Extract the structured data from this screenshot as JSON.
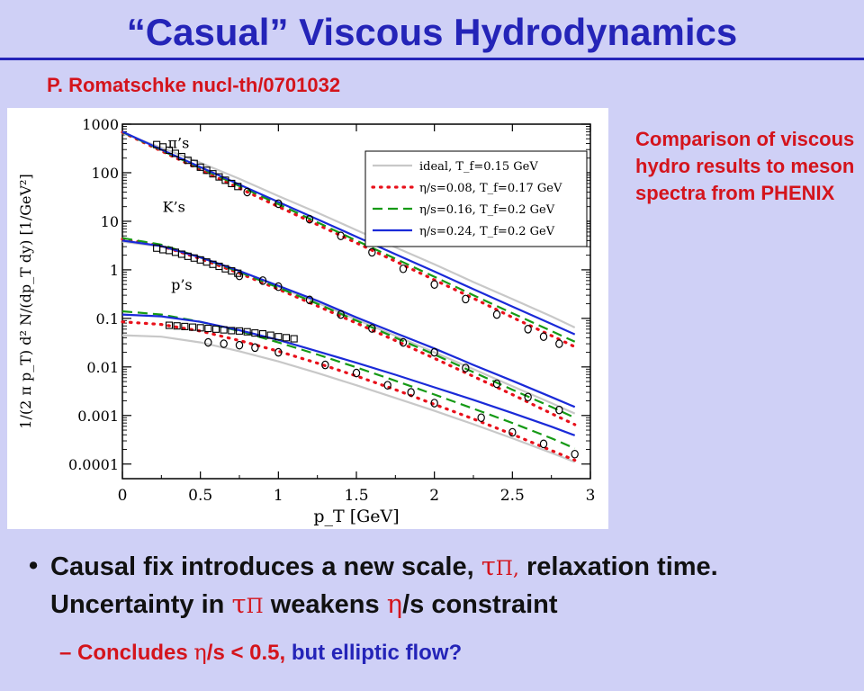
{
  "slide": {
    "title": "“Casual” Viscous Hydrodynamics",
    "reference": "P. Romatschke nucl-th/0701032",
    "side_note": "Comparison of viscous hydro results to meson spectra from PHENIX",
    "bullet": {
      "symbol": "•",
      "part1": "Causal fix introduces a new scale, ",
      "tau1": "τ",
      "pi1": "Π,",
      "part2": " relaxation time. Uncertainty in ",
      "tau2": "τ",
      "pi2": "Π",
      "part3": " weakens ",
      "eta": "η",
      "part4": "/s constraint"
    },
    "sub_bullet": {
      "dash": "–",
      "part1": " Concludes ",
      "eta": "η",
      "part2": "/s < 0.5,",
      "part3": " but elliptic flow?"
    }
  },
  "chart_data": {
    "type": "line",
    "xlabel": "p_T [GeV]",
    "ylabel": "1/(2 π p_T) d² N/(dp_T dy) [1/GeV²]",
    "xlim": [
      0,
      3
    ],
    "ylim": [
      5e-05,
      1000
    ],
    "yscale": "log",
    "x_ticks": [
      "0",
      "0.5",
      "1",
      "1.5",
      "2",
      "2.5",
      "3"
    ],
    "y_ticks": [
      "0.0001",
      "0.001",
      "0.01",
      "0.1",
      "1",
      "10",
      "100",
      "1000"
    ],
    "legend_position": "top-right",
    "legend": [
      {
        "label": "ideal, T_f=0.15 GeV",
        "color": "#c8c8c8",
        "style": "solid"
      },
      {
        "label": "η/s=0.08, T_f=0.17 GeV",
        "color": "#e8101a",
        "style": "dotted"
      },
      {
        "label": "η/s=0.16, T_f=0.2 GeV",
        "color": "#159a15",
        "style": "dashed"
      },
      {
        "label": "η/s=0.24, T_f=0.2 GeV",
        "color": "#1a2ad8",
        "style": "solid"
      }
    ],
    "species_labels": [
      {
        "text": "π’s",
        "x": 0.36,
        "y": 420
      },
      {
        "text": "K’s",
        "x": 0.33,
        "y": 20
      },
      {
        "text": "p’s",
        "x": 0.38,
        "y": 0.5
      }
    ],
    "curves": {
      "pions": {
        "x": [
          0,
          0.25,
          0.5,
          0.75,
          1.0,
          1.25,
          1.5,
          1.75,
          2.0,
          2.25,
          2.5,
          2.75,
          2.9
        ],
        "ideal": [
          650,
          330,
          160,
          75,
          33,
          15,
          6.6,
          2.9,
          1.3,
          0.56,
          0.25,
          0.11,
          0.065
        ],
        "eta008": [
          680,
          280,
          115,
          48,
          20,
          8.5,
          3.6,
          1.5,
          0.62,
          0.26,
          0.105,
          0.044,
          0.026
        ],
        "eta016": [
          690,
          290,
          125,
          53,
          22.5,
          9.5,
          4.0,
          1.7,
          0.72,
          0.3,
          0.128,
          0.055,
          0.033
        ],
        "eta024": [
          700,
          300,
          130,
          57,
          25,
          11,
          4.8,
          2.1,
          0.92,
          0.4,
          0.175,
          0.077,
          0.047
        ]
      },
      "kaons": {
        "x": [
          0,
          0.25,
          0.5,
          0.75,
          1.0,
          1.25,
          1.5,
          1.75,
          2.0,
          2.25,
          2.5,
          2.75,
          2.9
        ],
        "ideal": [
          3.8,
          3.0,
          1.8,
          0.95,
          0.45,
          0.21,
          0.095,
          0.044,
          0.02,
          0.009,
          0.004,
          0.0018,
          0.0011
        ],
        "eta008": [
          4.3,
          3.1,
          1.7,
          0.85,
          0.4,
          0.18,
          0.08,
          0.035,
          0.015,
          0.0064,
          0.0027,
          0.0011,
          0.00065
        ],
        "eta016": [
          4.5,
          3.3,
          1.8,
          0.9,
          0.43,
          0.2,
          0.09,
          0.04,
          0.018,
          0.0078,
          0.0034,
          0.0015,
          0.0009
        ],
        "eta024": [
          4.0,
          3.1,
          1.8,
          0.95,
          0.47,
          0.23,
          0.105,
          0.05,
          0.024,
          0.011,
          0.0052,
          0.0024,
          0.0015
        ]
      },
      "protons": {
        "x": [
          0,
          0.25,
          0.5,
          0.75,
          1.0,
          1.25,
          1.5,
          1.75,
          2.0,
          2.25,
          2.5,
          2.75,
          2.9
        ],
        "ideal": [
          0.045,
          0.042,
          0.032,
          0.021,
          0.013,
          0.0075,
          0.0042,
          0.0023,
          0.00125,
          0.00066,
          0.00034,
          0.00017,
          0.00011
        ],
        "eta008": [
          0.085,
          0.075,
          0.055,
          0.035,
          0.021,
          0.012,
          0.0065,
          0.0034,
          0.0017,
          0.00085,
          0.00041,
          0.00019,
          0.00012
        ],
        "eta016": [
          0.14,
          0.12,
          0.085,
          0.055,
          0.032,
          0.018,
          0.0098,
          0.0052,
          0.0027,
          0.00138,
          0.0007,
          0.00034,
          0.00021
        ],
        "eta024": [
          0.12,
          0.11,
          0.085,
          0.057,
          0.036,
          0.021,
          0.0122,
          0.0069,
          0.0038,
          0.0021,
          0.00112,
          0.00059,
          0.00039
        ]
      }
    },
    "data_points": {
      "pions_squares": [
        [
          0.22,
          380
        ],
        [
          0.26,
          340
        ],
        [
          0.3,
          290
        ],
        [
          0.34,
          250
        ],
        [
          0.38,
          215
        ],
        [
          0.42,
          180
        ],
        [
          0.46,
          155
        ],
        [
          0.5,
          130
        ],
        [
          0.54,
          112
        ],
        [
          0.58,
          95
        ],
        [
          0.62,
          82
        ],
        [
          0.66,
          70
        ],
        [
          0.7,
          60
        ],
        [
          0.74,
          52
        ]
      ],
      "pions_circles": [
        [
          0.8,
          40
        ],
        [
          1.0,
          23
        ],
        [
          1.2,
          11
        ],
        [
          1.4,
          5.0
        ],
        [
          1.6,
          2.3
        ],
        [
          1.8,
          1.05
        ],
        [
          2.0,
          0.5
        ],
        [
          2.2,
          0.25
        ],
        [
          2.4,
          0.12
        ],
        [
          2.6,
          0.06
        ],
        [
          2.7,
          0.042
        ],
        [
          2.8,
          0.03
        ]
      ],
      "kaons_squares": [
        [
          0.22,
          2.8
        ],
        [
          0.26,
          2.6
        ],
        [
          0.3,
          2.5
        ],
        [
          0.34,
          2.3
        ],
        [
          0.38,
          2.1
        ],
        [
          0.42,
          1.9
        ],
        [
          0.46,
          1.75
        ],
        [
          0.5,
          1.6
        ],
        [
          0.54,
          1.45
        ],
        [
          0.58,
          1.3
        ],
        [
          0.62,
          1.18
        ],
        [
          0.66,
          1.05
        ],
        [
          0.7,
          0.95
        ],
        [
          0.74,
          0.85
        ]
      ],
      "kaons_circles": [
        [
          0.75,
          0.75
        ],
        [
          0.9,
          0.6
        ],
        [
          1.0,
          0.45
        ],
        [
          1.2,
          0.24
        ],
        [
          1.4,
          0.12
        ],
        [
          1.6,
          0.062
        ],
        [
          1.8,
          0.032
        ],
        [
          2.0,
          0.02
        ],
        [
          2.2,
          0.0095
        ],
        [
          2.4,
          0.0045
        ],
        [
          2.6,
          0.0024
        ],
        [
          2.8,
          0.0013
        ]
      ],
      "protons_squares": [
        [
          0.3,
          0.072
        ],
        [
          0.35,
          0.07
        ],
        [
          0.4,
          0.068
        ],
        [
          0.45,
          0.066
        ],
        [
          0.5,
          0.064
        ],
        [
          0.55,
          0.062
        ],
        [
          0.6,
          0.06
        ],
        [
          0.65,
          0.058
        ],
        [
          0.7,
          0.056
        ],
        [
          0.75,
          0.055
        ],
        [
          0.8,
          0.053
        ],
        [
          0.85,
          0.05
        ],
        [
          0.9,
          0.048
        ],
        [
          0.95,
          0.045
        ],
        [
          1.0,
          0.042
        ],
        [
          1.05,
          0.04
        ],
        [
          1.1,
          0.038
        ]
      ],
      "protons_circles": [
        [
          0.55,
          0.032
        ],
        [
          0.65,
          0.03
        ],
        [
          0.75,
          0.028
        ],
        [
          0.85,
          0.025
        ],
        [
          1.0,
          0.02
        ],
        [
          1.3,
          0.011
        ],
        [
          1.5,
          0.0075
        ],
        [
          1.7,
          0.0042
        ],
        [
          1.85,
          0.003
        ],
        [
          2.0,
          0.0018
        ],
        [
          2.3,
          0.0009
        ],
        [
          2.5,
          0.00045
        ],
        [
          2.7,
          0.00026
        ],
        [
          2.9,
          0.00016
        ]
      ]
    }
  }
}
